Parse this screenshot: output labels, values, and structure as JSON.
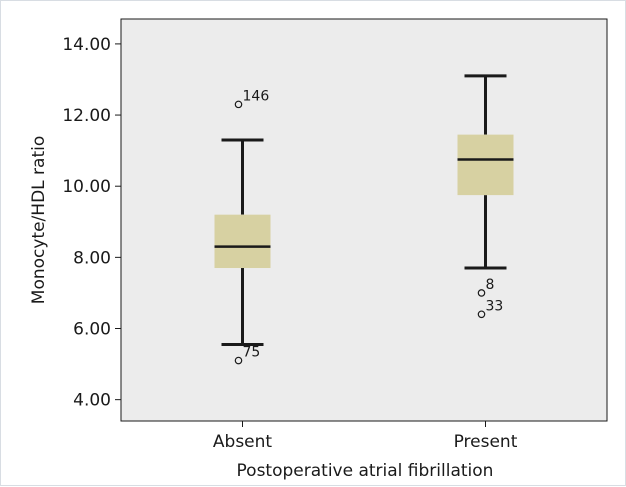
{
  "chart_data": {
    "type": "boxplot",
    "xlabel": "Postoperative atrial fibrillation",
    "ylabel": "Monocyte/HDL ratio",
    "ylim": [
      3.4,
      14.7
    ],
    "yticks": [
      "4.00",
      "6.00",
      "8.00",
      "10.00",
      "12.00",
      "14.00"
    ],
    "categories": [
      "Absent",
      "Present"
    ],
    "boxes": [
      {
        "category": "Absent",
        "whisker_low": 5.55,
        "q1": 7.7,
        "median": 8.3,
        "q3": 9.2,
        "whisker_high": 11.3,
        "outliers": [
          {
            "value": 12.3,
            "label": "146"
          },
          {
            "value": 5.1,
            "label": "75"
          }
        ]
      },
      {
        "category": "Present",
        "whisker_low": 7.7,
        "q1": 9.75,
        "median": 10.75,
        "q3": 11.45,
        "whisker_high": 13.1,
        "outliers": [
          {
            "value": 7.0,
            "label": "8"
          },
          {
            "value": 6.4,
            "label": "33"
          }
        ]
      }
    ],
    "grid": false,
    "colors": {
      "plot_background": "#ececec",
      "box_fill": "#d7d1a2",
      "line": "#1a1a1a"
    }
  }
}
